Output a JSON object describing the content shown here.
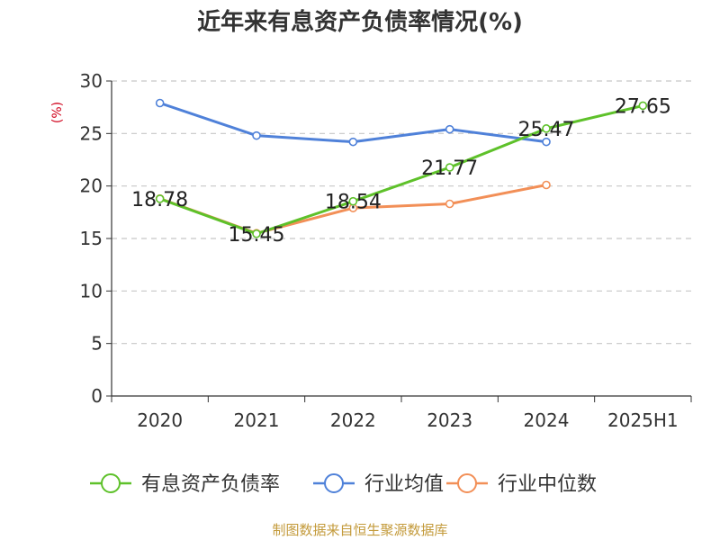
{
  "chart_data": {
    "type": "line",
    "title": "近年来有息资产负债率情况(%)",
    "ylabel": "(%)",
    "xlabel": "",
    "categories": [
      "2020",
      "2021",
      "2022",
      "2023",
      "2024",
      "2025H1"
    ],
    "ylim": [
      0,
      30
    ],
    "yticks": [
      0,
      5,
      10,
      15,
      20,
      25,
      30
    ],
    "grid": true,
    "legend_position": "bottom",
    "series": [
      {
        "name": "有息资产负债率",
        "color": "#5ec12a",
        "values": [
          18.78,
          15.45,
          18.54,
          21.77,
          25.47,
          27.65
        ],
        "labels": [
          "18.78",
          "15.45",
          "18.54",
          "21.77",
          "25.47",
          "27.65"
        ]
      },
      {
        "name": "行业均值",
        "color": "#4f81d9",
        "values": [
          27.9,
          24.8,
          24.2,
          25.4,
          24.2,
          null
        ]
      },
      {
        "name": "行业中位数",
        "color": "#f28f57",
        "values": [
          18.8,
          15.5,
          17.9,
          18.3,
          20.1,
          null
        ]
      }
    ]
  },
  "source": "制图数据来自恒生聚源数据库"
}
